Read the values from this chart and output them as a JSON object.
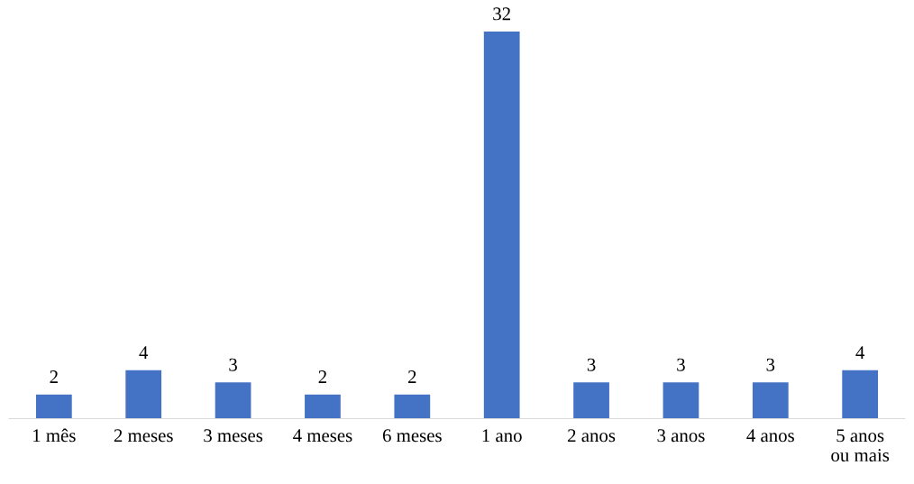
{
  "chart_data": {
    "type": "bar",
    "categories": [
      "1 mês",
      "2 meses",
      "3 meses",
      "4 meses",
      "6 meses",
      "1 ano",
      "2 anos",
      "3 anos",
      "4 anos",
      "5 anos\nou mais"
    ],
    "values": [
      2,
      4,
      3,
      2,
      2,
      32,
      3,
      3,
      3,
      4
    ],
    "color": "#4472c4",
    "data_labels": true,
    "grid": false,
    "legend": false
  }
}
